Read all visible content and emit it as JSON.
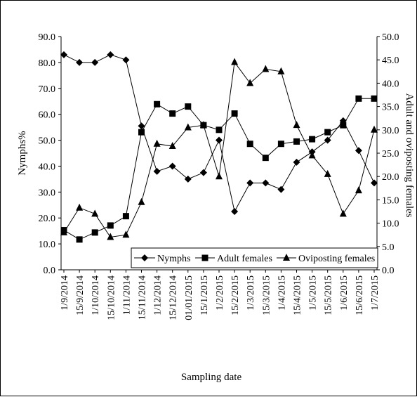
{
  "chart_data": {
    "type": "line",
    "xlabel": "Sampling date",
    "ylabel": "Nymphs%",
    "y2label": "Adult and oviposting females",
    "ylim": [
      0,
      90
    ],
    "yticks": [
      "0.0",
      "10.0",
      "20.0",
      "30.0",
      "40.0",
      "50.0",
      "60.0",
      "70.0",
      "80.0",
      "90.0"
    ],
    "y2lim": [
      0,
      50
    ],
    "y2ticks": [
      "0.0",
      "5.0",
      "10.0",
      "15.0",
      "20.0",
      "25.0",
      "30.0",
      "35.0",
      "40.0",
      "45.0",
      "50.0"
    ],
    "categories": [
      "1/9/2014",
      "15/9/2014",
      "1/10/2014",
      "15/10/2014",
      "1/11/2014",
      "15/11/2014",
      "1/12/2014",
      "15/12/2014",
      "01/01/2015",
      "15/1/2015",
      "1/2/2015",
      "15/2/2015",
      "1/3/2015",
      "15/3/2015",
      "1/4/2015",
      "15/4/2015",
      "1/5/2015",
      "15/5/2015",
      "1/6/2015",
      "15/6/2015",
      "1/7/2015"
    ],
    "legend_position": "bottom-right inside plot",
    "grid": false,
    "series": [
      {
        "name": "Nymphs",
        "axis": "left",
        "marker": "diamond",
        "values": [
          83.0,
          80.0,
          80.0,
          83.0,
          81.0,
          55.5,
          38.0,
          40.0,
          35.0,
          37.5,
          50.0,
          22.5,
          33.5,
          33.5,
          31.0,
          41.5,
          45.5,
          50.0,
          57.5,
          46.0,
          33.5
        ]
      },
      {
        "name": "Adult females",
        "axis": "right",
        "marker": "square",
        "values": [
          8.5,
          6.5,
          8.0,
          9.5,
          11.5,
          29.5,
          35.5,
          33.5,
          35.0,
          31.0,
          30.0,
          33.5,
          27.0,
          24.0,
          27.0,
          27.5,
          28.0,
          29.5,
          31.0,
          36.7,
          36.7
        ]
      },
      {
        "name": "Oviposting females",
        "axis": "right",
        "marker": "triangle",
        "values": [
          8.0,
          13.3,
          12.0,
          7.0,
          7.5,
          14.5,
          27.0,
          26.5,
          30.5,
          31.0,
          20.0,
          44.5,
          40.0,
          43.0,
          42.5,
          31.0,
          24.5,
          20.5,
          12.0,
          17.0,
          30.0
        ]
      }
    ]
  }
}
